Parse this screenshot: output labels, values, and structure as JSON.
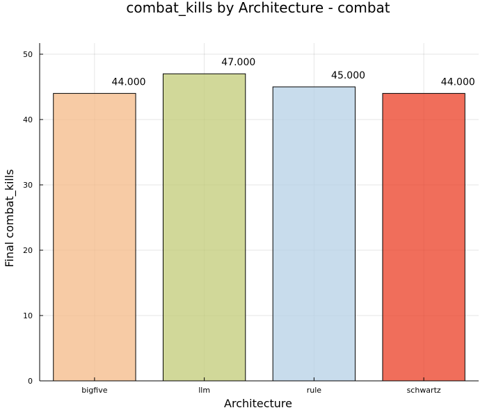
{
  "chart_data": {
    "type": "bar",
    "title": "combat_kills by Architecture - combat",
    "xlabel": "Architecture",
    "ylabel": "Final combat_kills",
    "categories": [
      "bigfive",
      "llm",
      "rule",
      "schwartz"
    ],
    "values": [
      44,
      47,
      45,
      44
    ],
    "data_labels": [
      "44.000",
      "47.000",
      "45.000",
      "44.000"
    ],
    "colors": [
      "#f4b987",
      "#c1cb77",
      "#b6d0e6",
      "#eb3e24"
    ],
    "ylim": [
      0,
      51.7
    ],
    "yticks": [
      0,
      10,
      20,
      30,
      40,
      50
    ],
    "grid": true,
    "legend": "none"
  }
}
